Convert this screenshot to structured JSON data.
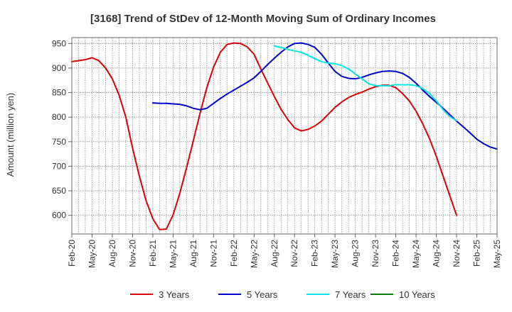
{
  "chart_data": {
    "type": "line",
    "title": "[3168]  Trend of StDev of 12-Month Moving Sum of Ordinary Incomes",
    "xlabel": "",
    "ylabel": "Amount (million yen)",
    "ylim": [
      562,
      962
    ],
    "yticks": [
      600,
      650,
      700,
      750,
      800,
      850,
      900,
      950
    ],
    "x_tick_labels": [
      "Feb-20",
      "May-20",
      "Aug-20",
      "Nov-20",
      "Feb-21",
      "May-21",
      "Aug-21",
      "Nov-21",
      "Feb-22",
      "May-22",
      "Aug-22",
      "Nov-22",
      "Feb-23",
      "May-23",
      "Aug-23",
      "Nov-23",
      "Feb-24",
      "May-24",
      "Aug-24",
      "Nov-24",
      "Feb-25",
      "May-25"
    ],
    "grid": true,
    "legend_position": "bottom",
    "series": [
      {
        "name": "3 Years",
        "color": "#dd0000",
        "start_index": 0,
        "values": [
          913,
          915,
          917,
          921,
          915,
          900,
          878,
          845,
          800,
          737,
          680,
          630,
          593,
          571,
          572,
          601,
          645,
          697,
          752,
          808,
          860,
          902,
          932,
          948,
          951,
          950,
          943,
          928,
          898,
          870,
          842,
          816,
          795,
          778,
          772,
          775,
          782,
          792,
          806,
          820,
          831,
          840,
          846,
          851,
          857,
          862,
          865,
          865,
          860,
          848,
          833,
          812,
          786,
          756,
          720,
          680,
          640,
          600
        ]
      },
      {
        "name": "5 Years",
        "color": "#0000cc",
        "start_index": 12,
        "values": [
          829,
          828,
          828,
          827,
          826,
          823,
          818,
          815,
          818,
          828,
          838,
          847,
          855,
          863,
          871,
          880,
          893,
          907,
          920,
          932,
          943,
          950,
          951,
          948,
          942,
          928,
          910,
          893,
          883,
          879,
          878,
          881,
          886,
          890,
          893,
          894,
          893,
          889,
          881,
          869,
          855,
          842,
          830,
          818,
          805,
          792,
          780,
          768,
          755,
          746,
          739,
          735
        ]
      },
      {
        "name": "7 Years",
        "color": "#00e5e5",
        "start_index": 30,
        "values": [
          945,
          942,
          938,
          935,
          932,
          926,
          919,
          913,
          910,
          909,
          905,
          898,
          888,
          878,
          868,
          864,
          864,
          864,
          866,
          866,
          866,
          864,
          858,
          848,
          833,
          815,
          801,
          793
        ]
      },
      {
        "name": "10 Years",
        "color": "#008000",
        "start_index": 0,
        "values": []
      }
    ]
  }
}
